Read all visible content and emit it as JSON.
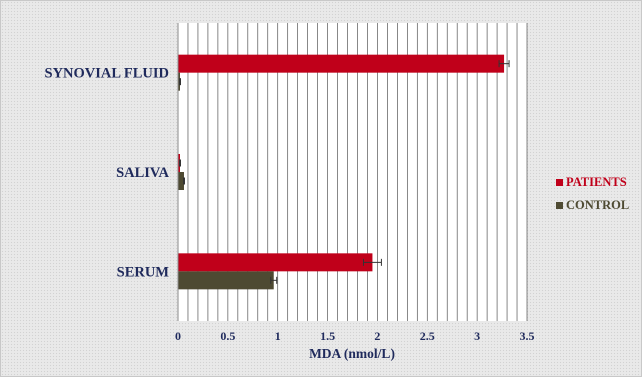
{
  "chart_data": {
    "type": "bar",
    "orientation": "horizontal",
    "categories": [
      "SERUM",
      "SALIVA",
      "SYNOVIAL FLUID"
    ],
    "series": [
      {
        "name": "PATIENTS",
        "values": [
          1.95,
          0.02,
          3.27
        ],
        "errors": [
          0.09,
          0.005,
          0.05
        ],
        "color": "#c0001a"
      },
      {
        "name": "CONTROL",
        "values": [
          0.96,
          0.06,
          0.02
        ],
        "errors": [
          0.03,
          0.005,
          0.005
        ],
        "color": "#4e4a32"
      }
    ],
    "xlabel": "MDA (nmol/L)",
    "ylabel": "",
    "title": "",
    "xlim": [
      0,
      3.5
    ],
    "xticks": [
      "0",
      "0.5",
      "1",
      "1.5",
      "2",
      "2.5",
      "3",
      "3.5"
    ],
    "grid": "vertical lines",
    "legend_position": "right"
  }
}
